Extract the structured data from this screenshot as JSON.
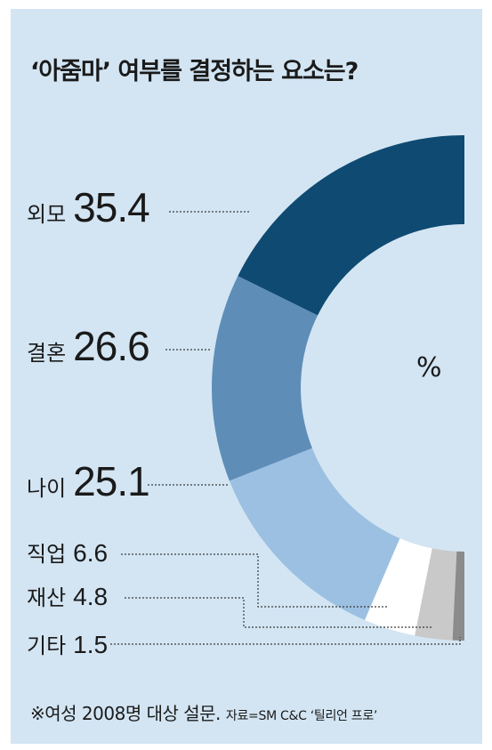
{
  "title": "‘아줌마’ 여부를 결정하는 요소는?",
  "unit": "%",
  "chart_data": {
    "type": "pie",
    "variant": "half-donut",
    "title": "‘아줌마’ 여부를 결정하는 요소는?",
    "unit": "%",
    "categories": [
      "외모",
      "결혼",
      "나이",
      "직업",
      "재산",
      "기타"
    ],
    "values": [
      35.4,
      26.6,
      25.1,
      6.6,
      4.8,
      1.5
    ],
    "value_labels": [
      "35.4",
      "26.6",
      "25.1",
      "6.6",
      "4.8",
      "1.5"
    ],
    "colors": [
      "#0f4a72",
      "#5e8db8",
      "#9cc0e1",
      "#ffffff",
      "#c9c9c9",
      "#8b8b8b"
    ],
    "legend": "left"
  },
  "footnote": {
    "main": "※여성 2008명 대상 설문.",
    "source": "자료=SM C&C ‘틸리언 프로’"
  }
}
